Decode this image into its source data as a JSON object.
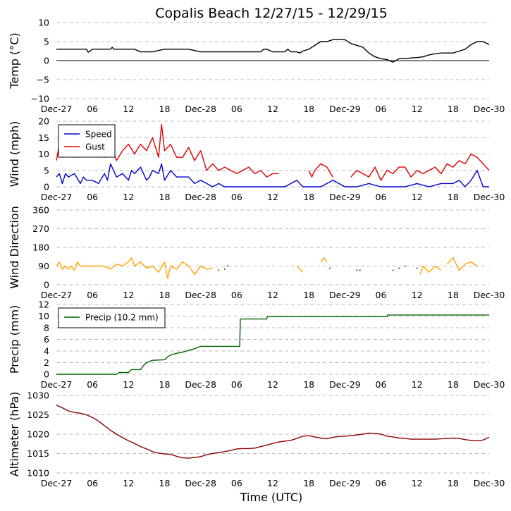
{
  "title": "Copalis Beach 12/27/15 - 12/29/15",
  "xlabel": "Time (UTC)",
  "colors": {
    "temp": "#000000",
    "speed": "#0000cc",
    "gust": "#dd0000",
    "direction": "#ffa500",
    "precip": "#006400",
    "altimeter": "#8b0000"
  },
  "chart_data": [
    {
      "id": "temp",
      "type": "line",
      "ylabel": "Temp (°C)",
      "ylim": [
        -10,
        10
      ],
      "yticks": [
        "10",
        "5",
        "0",
        "−5",
        "−10"
      ],
      "yticks_values": [
        10,
        5,
        0,
        -5,
        -10
      ],
      "zero_line": true,
      "xlim": [
        0,
        72
      ],
      "xticks": [
        "Dec-27",
        "06",
        "12",
        "18",
        "Dec-28",
        "06",
        "12",
        "18",
        "Dec-29",
        "06",
        "12",
        "18",
        "Dec-30"
      ],
      "series": [
        {
          "name": "Temp",
          "x": [
            0,
            2,
            4,
            5,
            5.3,
            6,
            8,
            9,
            9.3,
            9.6,
            10,
            11,
            12,
            13,
            14,
            16,
            18,
            19,
            20,
            22,
            24,
            25,
            26,
            28,
            30,
            32,
            34,
            34.5,
            35,
            36,
            37,
            38,
            38.5,
            39,
            40,
            40.5,
            41,
            42,
            43,
            44,
            45,
            46,
            47,
            48,
            49,
            50,
            51,
            52,
            53,
            54,
            55,
            56,
            57,
            58,
            59,
            60,
            61,
            62,
            63,
            64,
            65,
            66,
            67,
            68,
            69,
            70,
            71,
            72
          ],
          "y": [
            3.0,
            3.0,
            3.0,
            3.0,
            2.2,
            3.0,
            3.0,
            3.0,
            3.5,
            3.0,
            3.0,
            3.0,
            3.0,
            3.0,
            2.3,
            2.3,
            3.0,
            3.0,
            3.0,
            3.0,
            2.3,
            2.3,
            2.3,
            2.3,
            2.3,
            2.3,
            2.3,
            3.0,
            3.0,
            2.3,
            2.3,
            2.3,
            3.0,
            2.3,
            2.3,
            2.0,
            2.5,
            3.0,
            4.0,
            5.0,
            5.0,
            5.5,
            5.5,
            5.5,
            4.5,
            4.0,
            3.5,
            2.0,
            1.0,
            0.5,
            0.3,
            -0.4,
            0.5,
            0.5,
            0.7,
            0.8,
            1.0,
            1.5,
            1.8,
            2.0,
            2.0,
            2.0,
            2.5,
            3.0,
            4.2,
            5.0,
            5.0,
            4.2
          ]
        }
      ]
    },
    {
      "id": "wind",
      "type": "line",
      "ylabel": "Wind (mph)",
      "ylim": [
        0,
        20
      ],
      "yticks": [
        "20",
        "15",
        "10",
        "5",
        "0"
      ],
      "yticks_values": [
        20,
        15,
        10,
        5,
        0
      ],
      "xlim": [
        0,
        72
      ],
      "xticks": [
        "Dec-27",
        "06",
        "12",
        "18",
        "Dec-28",
        "06",
        "12",
        "18",
        "Dec-29",
        "06",
        "12",
        "18",
        "Dec-30"
      ],
      "legend": {
        "position": "top-left",
        "entries": [
          "Speed",
          "Gust"
        ]
      },
      "series": [
        {
          "name": "Speed",
          "x": [
            0,
            0.5,
            1,
            1.5,
            2,
            3,
            4,
            4.5,
            5,
            6,
            7,
            8,
            8.5,
            9,
            10,
            11,
            12,
            12.5,
            13,
            14,
            15,
            15.5,
            16,
            17,
            17.5,
            18,
            19,
            20,
            21,
            22,
            23,
            24,
            25,
            26,
            27,
            28,
            30,
            32,
            34,
            36,
            38,
            40,
            41,
            42,
            44,
            46,
            48,
            50,
            52,
            54,
            56,
            58,
            60,
            62,
            64,
            66,
            67,
            68,
            69,
            70,
            71,
            72
          ],
          "y": [
            3,
            4,
            1,
            4,
            3,
            4,
            1,
            3,
            2,
            2,
            1,
            4,
            2,
            7,
            3,
            4,
            2,
            5,
            4,
            6,
            2,
            3,
            5,
            4,
            7,
            2,
            5,
            3,
            3,
            3,
            1,
            2,
            1,
            0,
            1,
            0,
            0,
            0,
            0,
            0,
            0,
            2,
            0,
            0,
            0,
            2,
            0,
            0,
            1,
            0,
            0,
            0,
            1,
            0,
            1,
            1,
            2,
            0,
            2,
            5,
            0,
            0
          ]
        },
        {
          "name": "Gust",
          "x": [
            0,
            0.5,
            1,
            2,
            3,
            4,
            5,
            6,
            7,
            8,
            9,
            10,
            11,
            12,
            13,
            14,
            15,
            16,
            17,
            17.5,
            18,
            19,
            20,
            21,
            22,
            23,
            24,
            25,
            26,
            27,
            28,
            29,
            30,
            31,
            32,
            33,
            34,
            35,
            36,
            37
          ],
          "y": [
            8,
            13,
            9,
            12,
            9,
            12,
            10,
            11,
            12,
            9,
            13,
            8,
            11,
            13,
            10,
            13,
            11,
            15,
            9,
            19,
            11,
            13,
            9,
            9,
            12,
            8,
            11,
            5,
            7,
            5,
            6,
            5,
            4,
            5,
            6,
            4,
            5,
            3,
            4,
            4
          ],
          "segments": [
            {
              "x": [
                42,
                42.5,
                43,
                44,
                45,
                46
              ],
              "y": [
                5,
                3,
                5,
                7,
                6,
                3
              ]
            },
            {
              "x": [
                49,
                50,
                51,
                52,
                53,
                54,
                55,
                56,
                57,
                58,
                59,
                60,
                61,
                62,
                63,
                64,
                65,
                66,
                67,
                68,
                69,
                70,
                71,
                72
              ],
              "y": [
                3,
                5,
                4,
                3,
                6,
                2,
                5,
                4,
                6,
                6,
                3,
                5,
                4,
                5,
                6,
                4,
                7,
                6,
                8,
                7,
                10,
                9,
                7,
                5
              ]
            }
          ]
        }
      ]
    },
    {
      "id": "direction",
      "type": "line",
      "ylabel": "Wind Direction",
      "ylim": [
        0,
        360
      ],
      "yticks": [
        "360",
        "270",
        "180",
        "90",
        "0"
      ],
      "yticks_values": [
        360,
        270,
        180,
        90,
        0
      ],
      "xlim": [
        0,
        72
      ],
      "xticks": [
        "Dec-27",
        "06",
        "12",
        "18",
        "Dec-28",
        "06",
        "12",
        "18",
        "Dec-29",
        "06",
        "12",
        "18",
        "Dec-30"
      ],
      "series": [
        {
          "name": "Direction",
          "x": [
            0,
            0.5,
            1,
            1.5,
            2,
            2.5,
            3,
            3.5,
            4,
            5,
            6,
            7,
            8,
            9,
            10,
            11,
            12,
            12.5,
            13,
            14,
            15,
            16,
            17,
            18,
            18.5,
            19,
            20,
            21,
            22,
            23,
            24,
            25,
            26
          ],
          "y": [
            90,
            110,
            75,
            90,
            75,
            90,
            70,
            110,
            90,
            90,
            90,
            90,
            90,
            75,
            100,
            90,
            110,
            130,
            90,
            110,
            80,
            90,
            60,
            110,
            30,
            90,
            75,
            110,
            90,
            50,
            90,
            75,
            80
          ],
          "segments": [
            {
              "x": [
                40,
                41
              ],
              "y": [
                90,
                60
              ]
            },
            {
              "x": [
                44,
                44.5,
                45
              ],
              "y": [
                110,
                130,
                110
              ]
            },
            {
              "x": [
                60.5,
                61,
                62,
                63,
                64
              ],
              "y": [
                50,
                90,
                60,
                90,
                70
              ]
            },
            {
              "x": [
                65,
                66,
                67,
                68,
                69,
                70
              ],
              "y": [
                100,
                130,
                70,
                100,
                110,
                90
              ]
            }
          ],
          "dots": {
            "x": [
              27,
              28,
              28.5,
              45.5,
              50,
              50.5,
              56,
              57,
              58,
              60
            ],
            "y": [
              70,
              75,
              90,
              80,
              70,
              70,
              70,
              80,
              90,
              80
            ]
          }
        }
      ]
    },
    {
      "id": "precip",
      "type": "line",
      "ylabel": "Precip (mm)",
      "ylim": [
        0,
        12
      ],
      "yticks": [
        "12",
        "10",
        "8",
        "6",
        "4",
        "2",
        "0"
      ],
      "yticks_values": [
        12,
        10,
        8,
        6,
        4,
        2,
        0
      ],
      "xlim": [
        0,
        72
      ],
      "xticks": [
        "Dec-27",
        "06",
        "12",
        "18",
        "Dec-28",
        "06",
        "12",
        "18",
        "Dec-29",
        "06",
        "12",
        "18",
        "Dec-30"
      ],
      "legend": {
        "position": "top-left",
        "entries": [
          "Precip (10.2 mm)"
        ]
      },
      "series": [
        {
          "name": "Precip (10.2 mm)",
          "x": [
            0,
            10,
            10.5,
            12,
            12.5,
            14,
            14.5,
            15,
            16,
            18,
            18.5,
            19,
            20,
            21,
            22,
            23,
            24,
            25,
            30.5,
            30.6,
            35,
            35.1,
            55,
            55.1,
            72
          ],
          "y": [
            0,
            0,
            0.3,
            0.3,
            0.8,
            0.8,
            1.5,
            2.0,
            2.4,
            2.5,
            3.0,
            3.3,
            3.6,
            3.8,
            4.1,
            4.4,
            4.8,
            4.8,
            4.8,
            9.5,
            9.5,
            9.9,
            9.9,
            10.2,
            10.2
          ]
        }
      ]
    },
    {
      "id": "altimeter",
      "type": "line",
      "ylabel": "Altimeter (hPa)",
      "ylim": [
        1010,
        1030
      ],
      "yticks": [
        "1030",
        "1025",
        "1020",
        "1015",
        "1010"
      ],
      "yticks_values": [
        1030,
        1025,
        1020,
        1015,
        1010
      ],
      "xlim": [
        0,
        72
      ],
      "xticks": [
        "Dec-27",
        "06",
        "12",
        "18",
        "Dec-28",
        "06",
        "12",
        "18",
        "Dec-29",
        "06",
        "12",
        "18",
        "Dec-30"
      ],
      "series": [
        {
          "name": "Altimeter",
          "x": [
            0,
            1,
            2,
            3,
            4,
            5,
            6,
            7,
            8,
            9,
            10,
            11,
            12,
            13,
            14,
            15,
            16,
            17,
            18,
            19,
            20,
            21,
            22,
            23,
            24,
            25,
            26,
            27,
            28,
            29,
            30,
            31,
            32,
            33,
            34,
            35,
            36,
            37,
            38,
            39,
            40,
            41,
            42,
            43,
            44,
            45,
            46,
            47,
            48,
            49,
            50,
            51,
            52,
            53,
            54,
            55,
            56,
            57,
            58,
            59,
            60,
            61,
            62,
            63,
            64,
            65,
            66,
            67,
            68,
            69,
            70,
            71,
            72
          ],
          "y": [
            1027.5,
            1026.8,
            1026.0,
            1025.6,
            1025.4,
            1025.0,
            1024.3,
            1023.4,
            1022.2,
            1021.0,
            1020.0,
            1019.1,
            1018.3,
            1017.6,
            1016.8,
            1016.2,
            1015.5,
            1015.1,
            1014.9,
            1014.8,
            1014.3,
            1013.9,
            1013.8,
            1014.0,
            1014.2,
            1014.7,
            1015.0,
            1015.3,
            1015.5,
            1015.8,
            1016.2,
            1016.3,
            1016.3,
            1016.4,
            1016.8,
            1017.2,
            1017.6,
            1018.0,
            1018.2,
            1018.4,
            1018.9,
            1019.5,
            1019.6,
            1019.3,
            1019.0,
            1018.8,
            1019.2,
            1019.4,
            1019.5,
            1019.6,
            1019.8,
            1020.0,
            1020.3,
            1020.2,
            1020.0,
            1019.5,
            1019.3,
            1019.0,
            1018.9,
            1018.7,
            1018.7,
            1018.7,
            1018.7,
            1018.7,
            1018.8,
            1018.9,
            1019.0,
            1018.9,
            1018.6,
            1018.4,
            1018.3,
            1018.5,
            1019.2
          ]
        }
      ]
    }
  ]
}
